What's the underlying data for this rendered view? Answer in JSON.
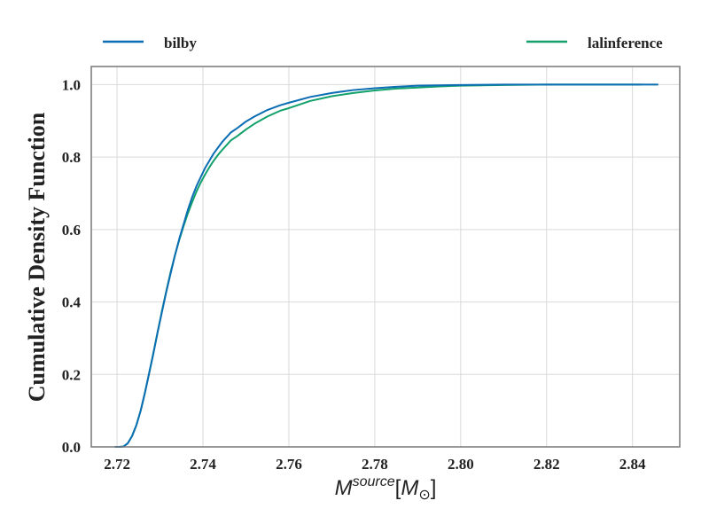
{
  "chart_data": {
    "type": "line",
    "title": "",
    "xlabel": {
      "base": "M",
      "superscript": "source",
      "unit_open": "[",
      "unit_base": "M",
      "unit_sub": "⊙",
      "unit_close": "]"
    },
    "ylabel": "Cumulative Density Function",
    "xlim": [
      2.714,
      2.851
    ],
    "ylim": [
      0.0,
      1.05
    ],
    "x_ticks": [
      2.72,
      2.74,
      2.76,
      2.78,
      2.8,
      2.82,
      2.84
    ],
    "x_tick_labels": [
      "2.72",
      "2.74",
      "2.76",
      "2.78",
      "2.80",
      "2.82",
      "2.84"
    ],
    "y_ticks": [
      0.0,
      0.2,
      0.4,
      0.6,
      0.8,
      1.0
    ],
    "y_tick_labels": [
      "0.0",
      "0.2",
      "0.4",
      "0.6",
      "0.8",
      "1.0"
    ],
    "grid": true,
    "legend_position": "top",
    "series": [
      {
        "name": "bilby",
        "color": "#0b6db3",
        "x": [
          2.7195,
          2.7205,
          2.7215,
          2.7225,
          2.7235,
          2.7245,
          2.7255,
          2.7265,
          2.7275,
          2.7285,
          2.7295,
          2.7305,
          2.7315,
          2.7325,
          2.7335,
          2.7345,
          2.7355,
          2.7365,
          2.7375,
          2.7385,
          2.7395,
          2.7405,
          2.7415,
          2.7425,
          2.7435,
          2.7445,
          2.7455,
          2.7465,
          2.748,
          2.75,
          2.752,
          2.755,
          2.758,
          2.76,
          2.765,
          2.77,
          2.775,
          2.78,
          2.785,
          2.79,
          2.795,
          2.8,
          2.81,
          2.82,
          2.83,
          2.846
        ],
        "y": [
          0.0,
          0.0,
          0.001,
          0.01,
          0.03,
          0.06,
          0.1,
          0.15,
          0.205,
          0.26,
          0.32,
          0.375,
          0.43,
          0.48,
          0.53,
          0.575,
          0.615,
          0.655,
          0.69,
          0.72,
          0.745,
          0.77,
          0.79,
          0.81,
          0.826,
          0.842,
          0.855,
          0.868,
          0.88,
          0.898,
          0.912,
          0.93,
          0.943,
          0.95,
          0.966,
          0.977,
          0.985,
          0.99,
          0.994,
          0.997,
          0.998,
          0.999,
          1.0,
          1.0,
          1.0,
          1.0
        ]
      },
      {
        "name": "lalinference",
        "color": "#12a06b",
        "x": [
          2.7195,
          2.7205,
          2.7215,
          2.7225,
          2.7235,
          2.7245,
          2.7255,
          2.7265,
          2.7275,
          2.7285,
          2.7295,
          2.7305,
          2.7315,
          2.7325,
          2.7335,
          2.7345,
          2.7355,
          2.7365,
          2.7375,
          2.7385,
          2.7395,
          2.7405,
          2.7415,
          2.7425,
          2.7435,
          2.7445,
          2.7455,
          2.7465,
          2.748,
          2.75,
          2.752,
          2.755,
          2.758,
          2.76,
          2.765,
          2.77,
          2.775,
          2.78,
          2.785,
          2.79,
          2.795,
          2.8,
          2.81,
          2.82,
          2.83,
          2.842
        ],
        "y": [
          0.0,
          0.0,
          0.001,
          0.01,
          0.03,
          0.06,
          0.1,
          0.15,
          0.205,
          0.262,
          0.32,
          0.378,
          0.432,
          0.484,
          0.53,
          0.572,
          0.61,
          0.645,
          0.676,
          0.705,
          0.73,
          0.752,
          0.772,
          0.79,
          0.806,
          0.82,
          0.833,
          0.846,
          0.858,
          0.876,
          0.892,
          0.912,
          0.928,
          0.935,
          0.955,
          0.968,
          0.977,
          0.984,
          0.989,
          0.992,
          0.995,
          0.997,
          0.999,
          1.0,
          1.0,
          1.0
        ]
      }
    ]
  }
}
